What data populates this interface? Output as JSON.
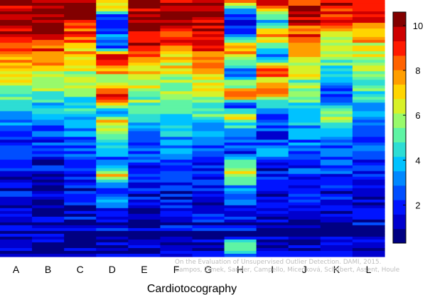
{
  "chart_data": {
    "type": "heatmap",
    "title": "",
    "xlabel": "Cardiotocography",
    "ylabel": "",
    "categories": [
      "A",
      "B",
      "C",
      "D",
      "E",
      "F",
      "G",
      "H",
      "I",
      "J",
      "K",
      "L"
    ],
    "colorbar": {
      "range": [
        0.3,
        10.6
      ],
      "ticks": [
        2,
        4,
        6,
        8,
        10
      ],
      "colormap": "jet"
    },
    "description_of_cells": "Each column is one method; each row one data instance; cell value (0-10.6) mapped to jet color",
    "columns": [
      {
        "name": "A",
        "profile": [
          [
            0,
            10.5
          ],
          [
            12,
            10.4
          ],
          [
            16,
            9.5
          ],
          [
            20,
            8.9
          ],
          [
            24,
            7.7
          ],
          [
            30,
            6.8
          ],
          [
            35,
            5.8
          ],
          [
            40,
            4.5
          ],
          [
            44,
            3.2
          ],
          [
            52,
            2.4
          ],
          [
            58,
            1.8
          ],
          [
            62,
            1.6
          ],
          [
            70,
            1.0
          ],
          [
            78,
            1.2
          ],
          [
            85,
            0.9
          ],
          [
            100,
            0.6
          ]
        ]
      },
      {
        "name": "B",
        "profile": [
          [
            0,
            10.5
          ],
          [
            12,
            10.3
          ],
          [
            16,
            9.4
          ],
          [
            20,
            8.6
          ],
          [
            24,
            7.4
          ],
          [
            30,
            6.5
          ],
          [
            35,
            5.5
          ],
          [
            41,
            3.8
          ],
          [
            46,
            2.8
          ],
          [
            52,
            2.2
          ],
          [
            58,
            1.6
          ],
          [
            64,
            1.4
          ],
          [
            70,
            1.0
          ],
          [
            80,
            1.1
          ],
          [
            86,
            0.8
          ],
          [
            100,
            0.6
          ]
        ]
      },
      {
        "name": "C",
        "profile": [
          [
            0,
            10.5
          ],
          [
            5,
            10.2
          ],
          [
            10,
            9.4
          ],
          [
            14,
            8.6
          ],
          [
            19,
            7.6
          ],
          [
            24,
            6.8
          ],
          [
            30,
            6.1
          ],
          [
            36,
            5.3
          ],
          [
            40,
            4.6
          ],
          [
            45,
            3.9
          ],
          [
            52,
            3.1
          ],
          [
            58,
            2.4
          ],
          [
            64,
            1.9
          ],
          [
            72,
            1.6
          ],
          [
            80,
            1.3
          ],
          [
            88,
            1.0
          ],
          [
            100,
            0.7
          ]
        ]
      },
      {
        "name": "D",
        "profile": [
          [
            0,
            7.5
          ],
          [
            3,
            6.3
          ],
          [
            6,
            2.8
          ],
          [
            10,
            2.0
          ],
          [
            14,
            3.0
          ],
          [
            18,
            1.6
          ],
          [
            22,
            9.8
          ],
          [
            27,
            8.3
          ],
          [
            31,
            5.2
          ],
          [
            35,
            8.6
          ],
          [
            39,
            9.1
          ],
          [
            43,
            2.8
          ],
          [
            47,
            7.0
          ],
          [
            52,
            5.6
          ],
          [
            58,
            3.4
          ],
          [
            64,
            2.3
          ],
          [
            69,
            7.4
          ],
          [
            72,
            3.1
          ],
          [
            76,
            2.6
          ],
          [
            82,
            2.0
          ],
          [
            88,
            1.3
          ],
          [
            100,
            0.8
          ]
        ]
      },
      {
        "name": "E",
        "profile": [
          [
            0,
            10.5
          ],
          [
            14,
            10.3
          ],
          [
            18,
            9.8
          ],
          [
            20,
            8.6
          ],
          [
            26,
            7.2
          ],
          [
            32,
            6.5
          ],
          [
            38,
            5.6
          ],
          [
            42,
            4.6
          ],
          [
            48,
            3.4
          ],
          [
            52,
            2.8
          ],
          [
            58,
            2.2
          ],
          [
            64,
            1.8
          ],
          [
            70,
            1.5
          ],
          [
            78,
            1.3
          ],
          [
            84,
            1.1
          ],
          [
            100,
            0.8
          ]
        ]
      },
      {
        "name": "F",
        "profile": [
          [
            0,
            10.5
          ],
          [
            10,
            10.2
          ],
          [
            12,
            9.4
          ],
          [
            16,
            8.8
          ],
          [
            20,
            7.3
          ],
          [
            26,
            6.8
          ],
          [
            32,
            6.1
          ],
          [
            38,
            5.3
          ],
          [
            44,
            4.6
          ],
          [
            50,
            4.0
          ],
          [
            54,
            3.4
          ],
          [
            58,
            2.7
          ],
          [
            64,
            2.0
          ],
          [
            72,
            1.7
          ],
          [
            80,
            1.3
          ],
          [
            88,
            1.0
          ],
          [
            100,
            0.7
          ]
        ]
      },
      {
        "name": "G",
        "profile": [
          [
            0,
            10.5
          ],
          [
            18,
            9.8
          ],
          [
            22,
            8.4
          ],
          [
            28,
            7.3
          ],
          [
            34,
            6.2
          ],
          [
            40,
            5.3
          ],
          [
            46,
            4.6
          ],
          [
            50,
            3.8
          ],
          [
            54,
            2.6
          ],
          [
            58,
            2.2
          ],
          [
            62,
            1.9
          ],
          [
            70,
            1.5
          ],
          [
            78,
            1.4
          ],
          [
            86,
            1.1
          ],
          [
            100,
            0.8
          ]
        ]
      },
      {
        "name": "H",
        "profile": [
          [
            0,
            9.5
          ],
          [
            4,
            2.8
          ],
          [
            9,
            1.6
          ],
          [
            14,
            3.1
          ],
          [
            18,
            8.3
          ],
          [
            23,
            6.4
          ],
          [
            28,
            2.9
          ],
          [
            33,
            5.3
          ],
          [
            37,
            9.6
          ],
          [
            41,
            2.0
          ],
          [
            45,
            6.7
          ],
          [
            50,
            3.9
          ],
          [
            55,
            2.3
          ],
          [
            60,
            1.6
          ],
          [
            66,
            6.8
          ],
          [
            70,
            5.0
          ],
          [
            75,
            2.4
          ],
          [
            80,
            2.0
          ],
          [
            84,
            1.7
          ],
          [
            88,
            1.4
          ],
          [
            92,
            1.1
          ],
          [
            96,
            5.8
          ],
          [
            100,
            1.3
          ]
        ]
      },
      {
        "name": "I",
        "profile": [
          [
            0,
            10.0
          ],
          [
            5,
            5.8
          ],
          [
            9,
            3.8
          ],
          [
            13,
            8.6
          ],
          [
            18,
            5.0
          ],
          [
            22,
            2.5
          ],
          [
            27,
            9.6
          ],
          [
            32,
            6.6
          ],
          [
            36,
            9.4
          ],
          [
            40,
            3.7
          ],
          [
            45,
            2.5
          ],
          [
            50,
            2.1
          ],
          [
            55,
            1.8
          ],
          [
            60,
            3.4
          ],
          [
            65,
            1.6
          ],
          [
            70,
            1.5
          ],
          [
            78,
            1.2
          ],
          [
            86,
            1.0
          ],
          [
            100,
            0.8
          ]
        ]
      },
      {
        "name": "J",
        "profile": [
          [
            0,
            7.0
          ],
          [
            3,
            10.5
          ],
          [
            11,
            9.2
          ],
          [
            15,
            8.6
          ],
          [
            20,
            7.5
          ],
          [
            26,
            6.8
          ],
          [
            32,
            5.6
          ],
          [
            38,
            4.7
          ],
          [
            44,
            3.9
          ],
          [
            50,
            3.2
          ],
          [
            56,
            2.6
          ],
          [
            62,
            1.9
          ],
          [
            68,
            2.2
          ],
          [
            74,
            1.6
          ],
          [
            80,
            1.4
          ],
          [
            88,
            1.1
          ],
          [
            100,
            0.8
          ]
        ]
      },
      {
        "name": "K",
        "profile": [
          [
            0,
            10.5
          ],
          [
            5,
            9.6
          ],
          [
            9,
            8.7
          ],
          [
            14,
            7.2
          ],
          [
            19,
            6.3
          ],
          [
            24,
            5.1
          ],
          [
            28,
            3.8
          ],
          [
            34,
            2.8
          ],
          [
            40,
            2.4
          ],
          [
            44,
            6.8
          ],
          [
            48,
            4.2
          ],
          [
            52,
            3.6
          ],
          [
            56,
            2.8
          ],
          [
            62,
            2.1
          ],
          [
            68,
            1.8
          ],
          [
            74,
            1.5
          ],
          [
            80,
            1.2
          ],
          [
            88,
            1.0
          ],
          [
            100,
            0.8
          ]
        ]
      },
      {
        "name": "L",
        "profile": [
          [
            0,
            9.4
          ],
          [
            6,
            9.8
          ],
          [
            10,
            8.6
          ],
          [
            14,
            7.6
          ],
          [
            20,
            6.4
          ],
          [
            26,
            5.6
          ],
          [
            32,
            4.9
          ],
          [
            38,
            4.1
          ],
          [
            44,
            3.4
          ],
          [
            50,
            2.8
          ],
          [
            56,
            2.3
          ],
          [
            62,
            1.9
          ],
          [
            68,
            1.6
          ],
          [
            74,
            1.3
          ],
          [
            82,
            1.1
          ],
          [
            90,
            0.9
          ],
          [
            100,
            0.7
          ]
        ]
      }
    ]
  },
  "watermark": {
    "line1": "On the Evaluation of Unsupervised Outlier Detection. DAMI, 2015.",
    "line2": "Campos, Zimek, Sander, Campello, Micenková, Schubert, Assent, Houle"
  }
}
